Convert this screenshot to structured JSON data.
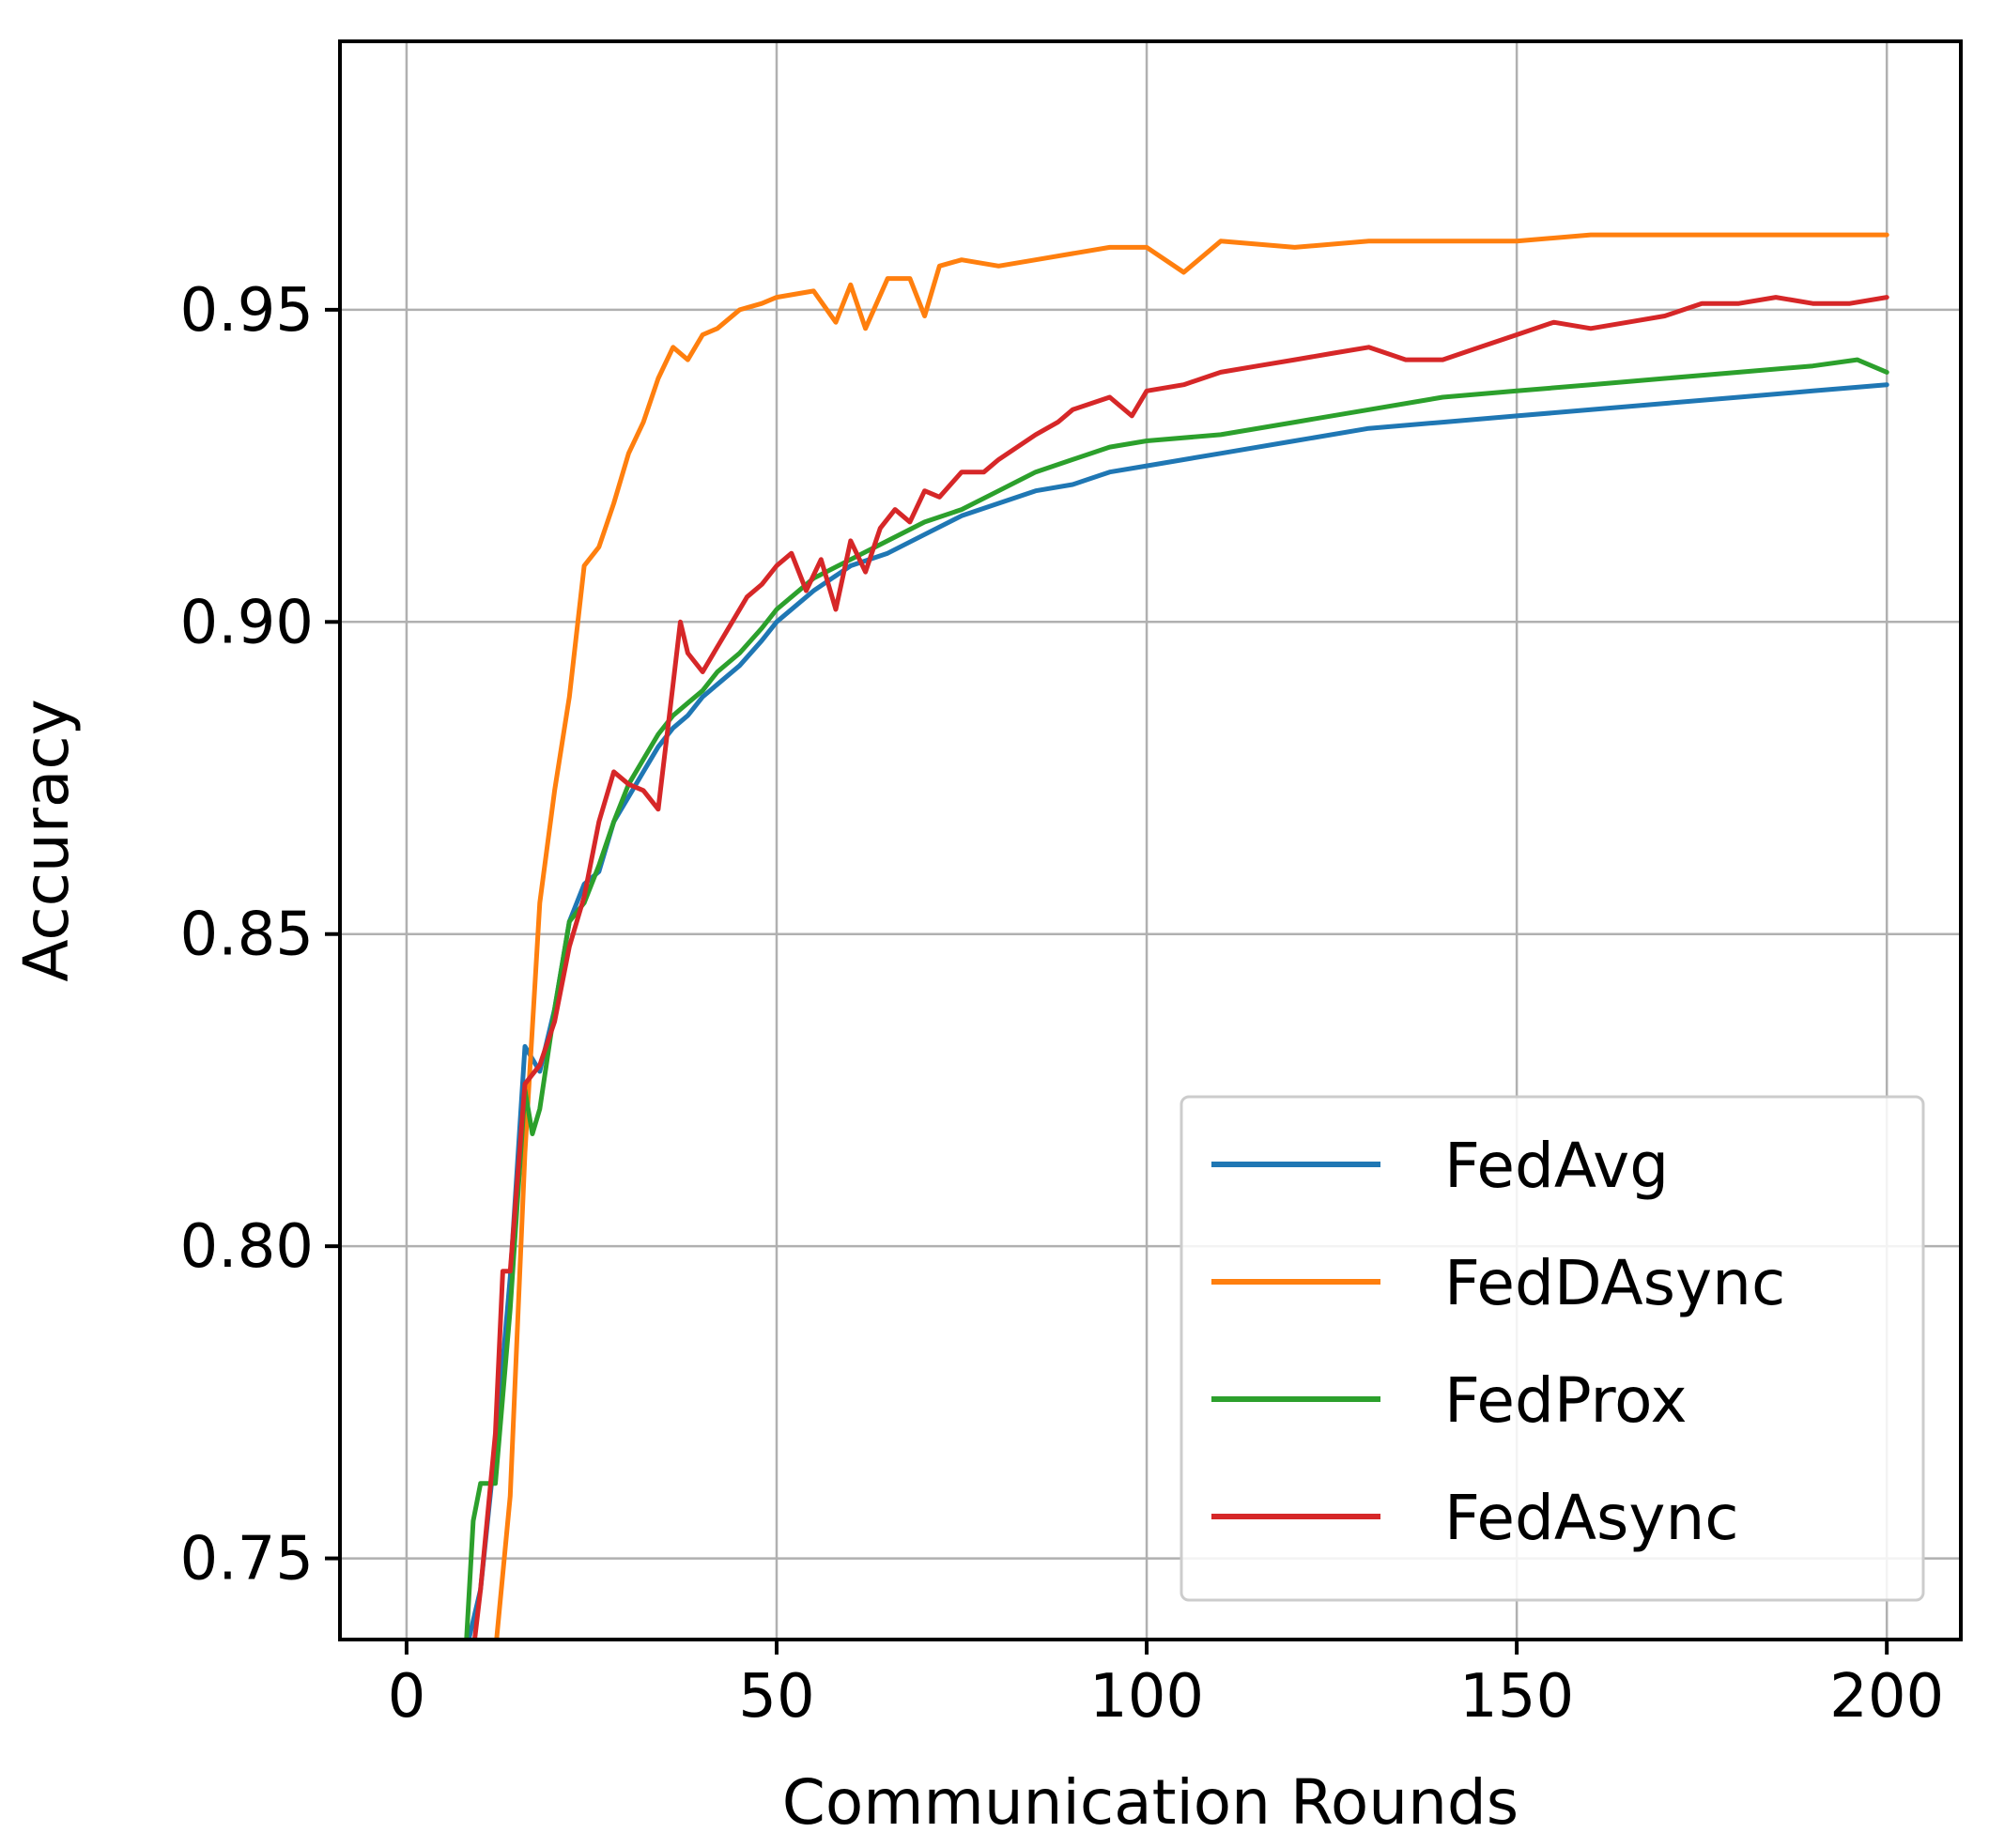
{
  "chart_data": {
    "type": "line",
    "title": "",
    "xlabel": "Communication Rounds",
    "ylabel": "Accuracy",
    "xlim": [
      -9,
      210
    ],
    "ylim": [
      0.737,
      0.993
    ],
    "xticks": [
      0,
      50,
      100,
      150,
      200
    ],
    "xtick_labels": [
      "0",
      "50",
      "100",
      "150",
      "200"
    ],
    "yticks": [
      0.75,
      0.8,
      0.85,
      0.9,
      0.95
    ],
    "ytick_labels": [
      "0.75",
      "0.80",
      "0.85",
      "0.90",
      "0.95"
    ],
    "grid": true,
    "legend_position": "lower-right",
    "series": [
      {
        "name": "FedAvg",
        "color": "#1f77b4",
        "x": [
          8,
          10,
          12,
          14,
          16,
          18,
          20,
          22,
          24,
          26,
          28,
          30,
          32,
          34,
          36,
          38,
          40,
          42,
          45,
          48,
          50,
          55,
          60,
          65,
          70,
          75,
          80,
          85,
          90,
          95,
          100,
          110,
          120,
          130,
          140,
          150,
          160,
          170,
          180,
          190,
          200
        ],
        "y": [
          0.735,
          0.745,
          0.768,
          0.795,
          0.832,
          0.828,
          0.838,
          0.852,
          0.858,
          0.86,
          0.868,
          0.872,
          0.876,
          0.88,
          0.883,
          0.885,
          0.888,
          0.89,
          0.893,
          0.897,
          0.9,
          0.905,
          0.909,
          0.911,
          0.914,
          0.917,
          0.919,
          0.921,
          0.922,
          0.924,
          0.925,
          0.927,
          0.929,
          0.931,
          0.932,
          0.933,
          0.934,
          0.935,
          0.936,
          0.937,
          0.938
        ]
      },
      {
        "name": "FedDAsync",
        "color": "#ff7f0e",
        "x": [
          12,
          14,
          16,
          18,
          20,
          22,
          24,
          26,
          28,
          30,
          32,
          34,
          36,
          38,
          40,
          42,
          45,
          48,
          50,
          55,
          58,
          60,
          62,
          65,
          68,
          70,
          72,
          75,
          80,
          85,
          90,
          95,
          100,
          105,
          110,
          120,
          130,
          140,
          150,
          160,
          170,
          180,
          190,
          200
        ],
        "y": [
          0.735,
          0.76,
          0.815,
          0.855,
          0.873,
          0.888,
          0.909,
          0.912,
          0.919,
          0.927,
          0.932,
          0.939,
          0.944,
          0.942,
          0.946,
          0.947,
          0.95,
          0.951,
          0.952,
          0.953,
          0.948,
          0.954,
          0.947,
          0.955,
          0.955,
          0.949,
          0.957,
          0.958,
          0.957,
          0.958,
          0.959,
          0.96,
          0.96,
          0.956,
          0.961,
          0.96,
          0.961,
          0.961,
          0.961,
          0.962,
          0.962,
          0.962,
          0.962,
          0.962
        ]
      },
      {
        "name": "FedProx",
        "color": "#2ca02c",
        "x": [
          8,
          9,
          10,
          12,
          14,
          16,
          17,
          18,
          20,
          22,
          24,
          26,
          28,
          30,
          32,
          34,
          36,
          38,
          40,
          42,
          45,
          48,
          50,
          55,
          60,
          65,
          70,
          75,
          80,
          85,
          90,
          95,
          100,
          110,
          120,
          130,
          140,
          150,
          160,
          170,
          180,
          190,
          196,
          200
        ],
        "y": [
          0.735,
          0.756,
          0.762,
          0.762,
          0.79,
          0.825,
          0.818,
          0.822,
          0.838,
          0.852,
          0.855,
          0.861,
          0.868,
          0.874,
          0.878,
          0.882,
          0.885,
          0.887,
          0.889,
          0.892,
          0.895,
          0.899,
          0.902,
          0.907,
          0.91,
          0.913,
          0.916,
          0.918,
          0.921,
          0.924,
          0.926,
          0.928,
          0.929,
          0.93,
          0.932,
          0.934,
          0.936,
          0.937,
          0.938,
          0.939,
          0.94,
          0.941,
          0.942,
          0.94
        ]
      },
      {
        "name": "FedAsync",
        "color": "#d62728",
        "x": [
          9,
          10,
          12,
          13,
          14,
          16,
          18,
          20,
          22,
          24,
          26,
          28,
          30,
          32,
          34,
          36,
          37,
          38,
          40,
          42,
          44,
          46,
          48,
          50,
          52,
          54,
          56,
          58,
          60,
          62,
          64,
          66,
          68,
          70,
          72,
          75,
          78,
          80,
          85,
          88,
          90,
          95,
          98,
          100,
          105,
          110,
          115,
          120,
          125,
          130,
          135,
          140,
          145,
          150,
          155,
          160,
          165,
          170,
          175,
          180,
          185,
          190,
          195,
          200
        ],
        "y": [
          0.735,
          0.745,
          0.77,
          0.796,
          0.796,
          0.826,
          0.829,
          0.836,
          0.848,
          0.856,
          0.868,
          0.876,
          0.874,
          0.873,
          0.87,
          0.89,
          0.9,
          0.895,
          0.892,
          0.896,
          0.9,
          0.904,
          0.906,
          0.909,
          0.911,
          0.905,
          0.91,
          0.902,
          0.913,
          0.908,
          0.915,
          0.918,
          0.916,
          0.921,
          0.92,
          0.924,
          0.924,
          0.926,
          0.93,
          0.932,
          0.934,
          0.936,
          0.933,
          0.937,
          0.938,
          0.94,
          0.941,
          0.942,
          0.943,
          0.944,
          0.942,
          0.942,
          0.944,
          0.946,
          0.948,
          0.947,
          0.948,
          0.949,
          0.951,
          0.951,
          0.952,
          0.951,
          0.951,
          0.952
        ]
      }
    ]
  }
}
